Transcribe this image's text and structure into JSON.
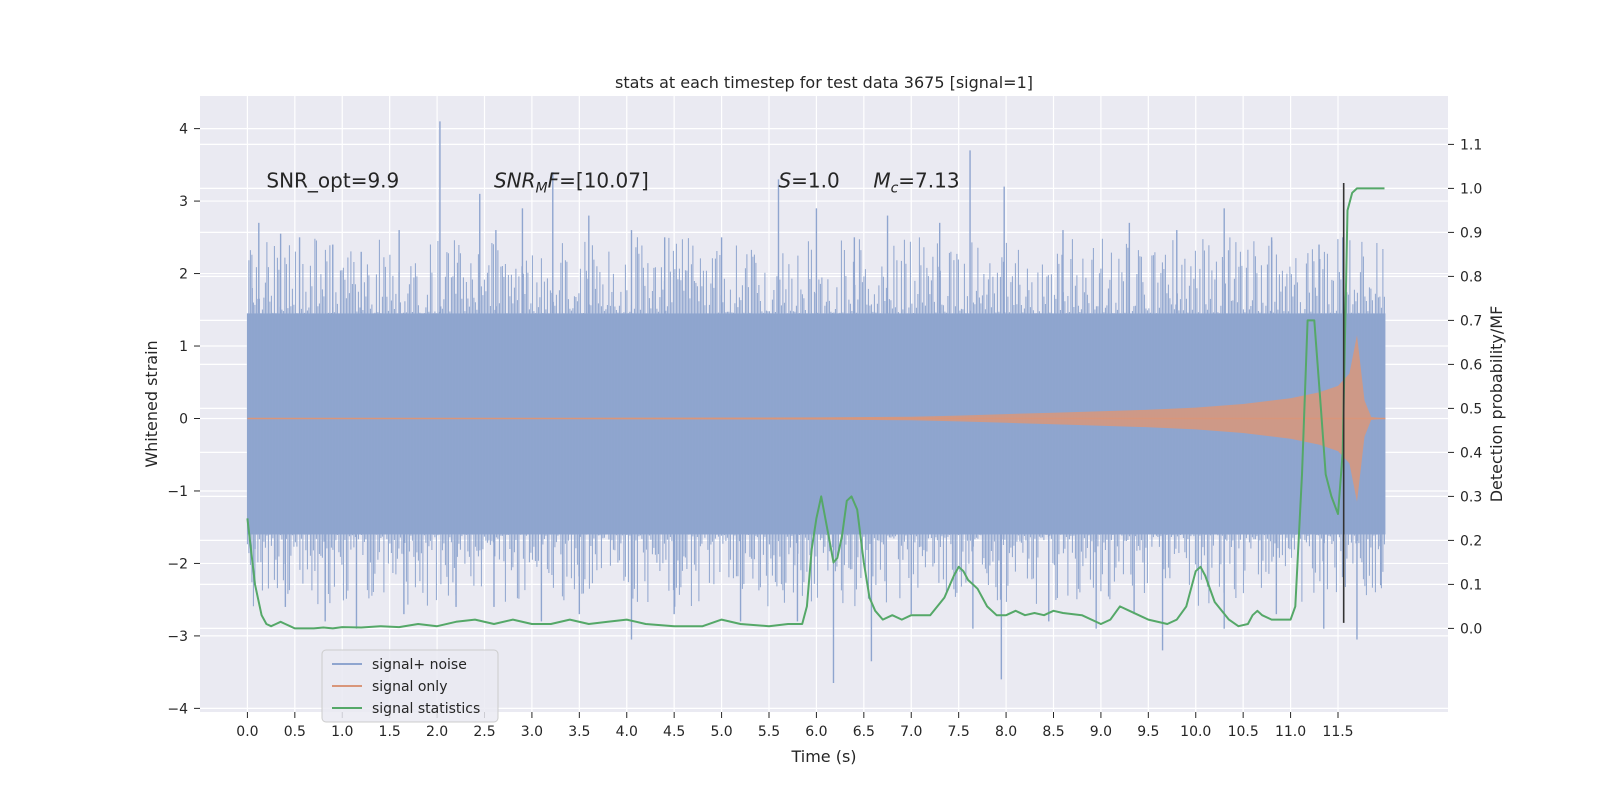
{
  "chart_data": {
    "type": "line",
    "title": "stats at each timestep for test data 3675 [signal=1]",
    "xlabel": "Time (s)",
    "ylabel": "Whitened strain",
    "y2label": "Detection probability/MF",
    "xlim": [
      -0.5,
      12.66
    ],
    "ylim": [
      -4.05,
      4.45
    ],
    "y2lim": [
      -0.19,
      1.21
    ],
    "xticks": [
      "0.0",
      "0.5",
      "1.0",
      "1.5",
      "2.0",
      "2.5",
      "3.0",
      "3.5",
      "4.0",
      "4.5",
      "5.0",
      "5.5",
      "6.0",
      "6.5",
      "7.0",
      "7.5",
      "8.0",
      "8.5",
      "9.0",
      "9.5",
      "10.0",
      "10.5",
      "11.0",
      "11.5"
    ],
    "yticks": [
      "4",
      "3",
      "2",
      "1",
      "0",
      "−1",
      "−2",
      "−3",
      "−4"
    ],
    "y2ticks": [
      "1.1",
      "1.0",
      "0.9",
      "0.8",
      "0.7",
      "0.6",
      "0.5",
      "0.4",
      "0.3",
      "0.2",
      "0.1",
      "0.0"
    ],
    "grid": true,
    "legend_position": "lower-left",
    "annotations": [
      {
        "text": "SNR_opt=9.9",
        "x": 0.2,
        "y": 3.3
      },
      {
        "text": "SNRMF=[10.07]",
        "x": 2.6,
        "y": 3.3
      },
      {
        "text": "S=1.0",
        "x": 5.6,
        "y": 3.3
      },
      {
        "text": "Mc=7.13",
        "x": 6.6,
        "y": 3.3
      }
    ],
    "vline_x": 11.56,
    "series": [
      {
        "name": "signal+ noise",
        "color": "#8fa5cf",
        "axis": "left",
        "band_x": [
          0.0,
          12.0
        ],
        "core_range": [
          -1.6,
          1.45
        ],
        "peak_events": [
          [
            0.05,
            1.8
          ],
          [
            0.12,
            2.7
          ],
          [
            0.35,
            2.55
          ],
          [
            0.55,
            2.5
          ],
          [
            0.9,
            2.4
          ],
          [
            1.2,
            2.3
          ],
          [
            1.6,
            2.6
          ],
          [
            2.03,
            4.1
          ],
          [
            2.45,
            3.1
          ],
          [
            2.62,
            2.6
          ],
          [
            2.9,
            2.9
          ],
          [
            3.22,
            3.4
          ],
          [
            3.6,
            2.8
          ],
          [
            4.05,
            2.6
          ],
          [
            4.4,
            2.5
          ],
          [
            5.0,
            2.5
          ],
          [
            5.6,
            3.3
          ],
          [
            6.0,
            2.9
          ],
          [
            6.4,
            2.5
          ],
          [
            6.75,
            2.8
          ],
          [
            7.3,
            2.7
          ],
          [
            7.62,
            3.7
          ],
          [
            7.98,
            3.2
          ],
          [
            8.6,
            2.6
          ],
          [
            9.3,
            2.7
          ],
          [
            9.8,
            2.6
          ],
          [
            10.3,
            2.9
          ],
          [
            10.8,
            2.5
          ],
          [
            11.3,
            2.4
          ],
          [
            11.55,
            2.5
          ]
        ],
        "trough_events": [
          [
            0.08,
            -1.8
          ],
          [
            0.4,
            -2.6
          ],
          [
            0.82,
            -2.8
          ],
          [
            1.15,
            -2.9
          ],
          [
            1.65,
            -2.7
          ],
          [
            2.2,
            -2.6
          ],
          [
            2.6,
            -2.6
          ],
          [
            3.1,
            -2.8
          ],
          [
            3.5,
            -2.7
          ],
          [
            4.05,
            -3.05
          ],
          [
            4.5,
            -2.7
          ],
          [
            5.2,
            -2.8
          ],
          [
            5.8,
            -2.8
          ],
          [
            6.18,
            -3.65
          ],
          [
            6.58,
            -3.35
          ],
          [
            7.0,
            -2.7
          ],
          [
            7.65,
            -2.9
          ],
          [
            7.95,
            -3.6
          ],
          [
            8.45,
            -2.8
          ],
          [
            8.95,
            -2.9
          ],
          [
            9.35,
            -2.7
          ],
          [
            9.65,
            -3.2
          ],
          [
            10.3,
            -2.9
          ],
          [
            10.85,
            -2.7
          ],
          [
            11.35,
            -2.9
          ],
          [
            11.7,
            -3.05
          ],
          [
            11.95,
            -2.3
          ]
        ]
      },
      {
        "name": "signal only",
        "color": "#d9967a",
        "axis": "left",
        "envelope_x": [
          0.0,
          2.0,
          4.0,
          6.0,
          7.0,
          7.5,
          8.0,
          8.5,
          9.0,
          9.5,
          10.0,
          10.5,
          11.0,
          11.3,
          11.5,
          11.62,
          11.7,
          11.78,
          11.85,
          12.0
        ],
        "envelope_amp": [
          0.0,
          0.0,
          0.01,
          0.015,
          0.025,
          0.04,
          0.06,
          0.08,
          0.1,
          0.12,
          0.15,
          0.2,
          0.28,
          0.36,
          0.45,
          0.62,
          1.15,
          0.25,
          0.02,
          0.0
        ]
      },
      {
        "name": "signal statistics",
        "color": "#55a868",
        "axis": "right",
        "x": [
          0.0,
          0.08,
          0.15,
          0.2,
          0.25,
          0.3,
          0.35,
          0.4,
          0.45,
          0.5,
          0.6,
          0.7,
          0.8,
          0.9,
          1.0,
          1.2,
          1.4,
          1.6,
          1.8,
          2.0,
          2.2,
          2.4,
          2.6,
          2.8,
          3.0,
          3.2,
          3.4,
          3.6,
          3.8,
          4.0,
          4.2,
          4.5,
          4.8,
          5.0,
          5.2,
          5.5,
          5.7,
          5.85,
          5.9,
          5.95,
          6.0,
          6.05,
          6.12,
          6.18,
          6.22,
          6.27,
          6.32,
          6.37,
          6.43,
          6.5,
          6.56,
          6.62,
          6.7,
          6.8,
          6.9,
          7.0,
          7.2,
          7.35,
          7.45,
          7.5,
          7.55,
          7.6,
          7.65,
          7.7,
          7.8,
          7.9,
          8.0,
          8.1,
          8.2,
          8.3,
          8.4,
          8.5,
          8.6,
          8.8,
          9.0,
          9.1,
          9.2,
          9.3,
          9.5,
          9.7,
          9.8,
          9.9,
          10.0,
          10.05,
          10.1,
          10.2,
          10.35,
          10.45,
          10.55,
          10.6,
          10.65,
          10.7,
          10.8,
          10.9,
          11.0,
          11.05,
          11.12,
          11.18,
          11.25,
          11.32,
          11.37,
          11.43,
          11.5,
          11.55,
          11.6,
          11.65,
          11.7,
          11.8,
          11.9,
          11.99
        ],
        "y": [
          0.25,
          0.1,
          0.03,
          0.01,
          0.005,
          0.01,
          0.015,
          0.01,
          0.005,
          0.0,
          0.0,
          0.0,
          0.002,
          0.0,
          0.003,
          0.002,
          0.005,
          0.003,
          0.01,
          0.005,
          0.015,
          0.02,
          0.01,
          0.02,
          0.01,
          0.01,
          0.02,
          0.01,
          0.015,
          0.02,
          0.01,
          0.005,
          0.005,
          0.02,
          0.01,
          0.005,
          0.01,
          0.01,
          0.05,
          0.18,
          0.25,
          0.3,
          0.22,
          0.15,
          0.16,
          0.21,
          0.29,
          0.3,
          0.27,
          0.15,
          0.07,
          0.04,
          0.02,
          0.03,
          0.02,
          0.03,
          0.03,
          0.07,
          0.12,
          0.14,
          0.13,
          0.11,
          0.1,
          0.09,
          0.05,
          0.03,
          0.03,
          0.04,
          0.03,
          0.035,
          0.03,
          0.04,
          0.035,
          0.03,
          0.01,
          0.02,
          0.05,
          0.04,
          0.02,
          0.01,
          0.02,
          0.05,
          0.13,
          0.14,
          0.12,
          0.06,
          0.02,
          0.005,
          0.01,
          0.03,
          0.04,
          0.03,
          0.02,
          0.02,
          0.02,
          0.05,
          0.35,
          0.7,
          0.7,
          0.5,
          0.35,
          0.3,
          0.26,
          0.4,
          0.95,
          0.99,
          1.0,
          1.0,
          1.0,
          1.0
        ]
      }
    ]
  }
}
